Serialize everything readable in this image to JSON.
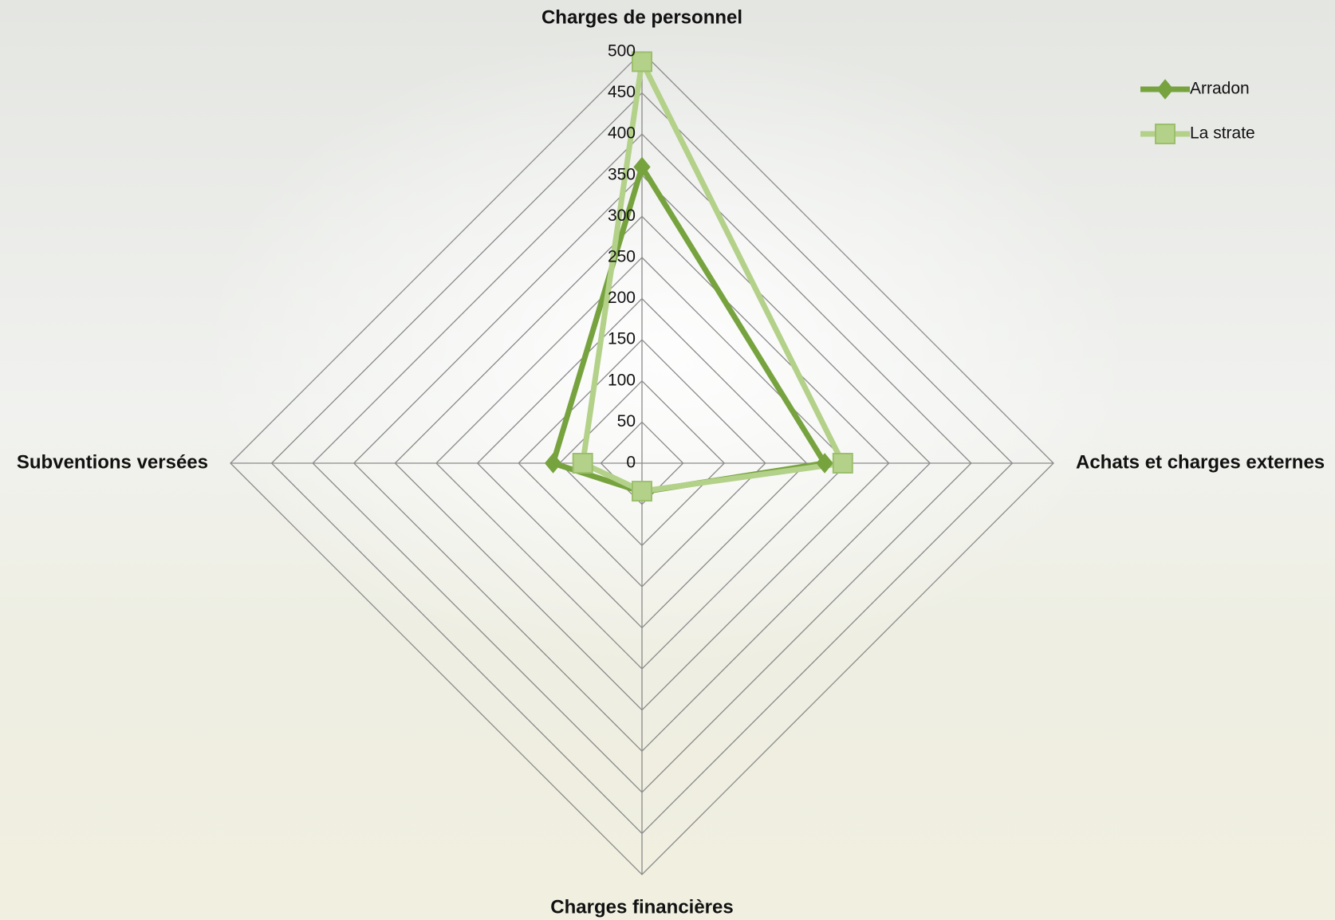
{
  "chart_data": {
    "type": "radar",
    "categories": [
      "Charges de personnel",
      "Achats et charges externes",
      "Charges financières",
      "Subventions versées"
    ],
    "series": [
      {
        "name": "Arradon",
        "color": "#77a33f",
        "marker": "diamond",
        "values": [
          360,
          222,
          35,
          108
        ]
      },
      {
        "name": "La strate",
        "color": "#b3d189",
        "marker": "square",
        "values": [
          488,
          244,
          34,
          72
        ]
      }
    ],
    "ylim": [
      0,
      500
    ],
    "yticks": [
      0,
      50,
      100,
      150,
      200,
      250,
      300,
      350,
      400,
      450,
      500
    ],
    "grid": true,
    "legend": "top-right"
  }
}
